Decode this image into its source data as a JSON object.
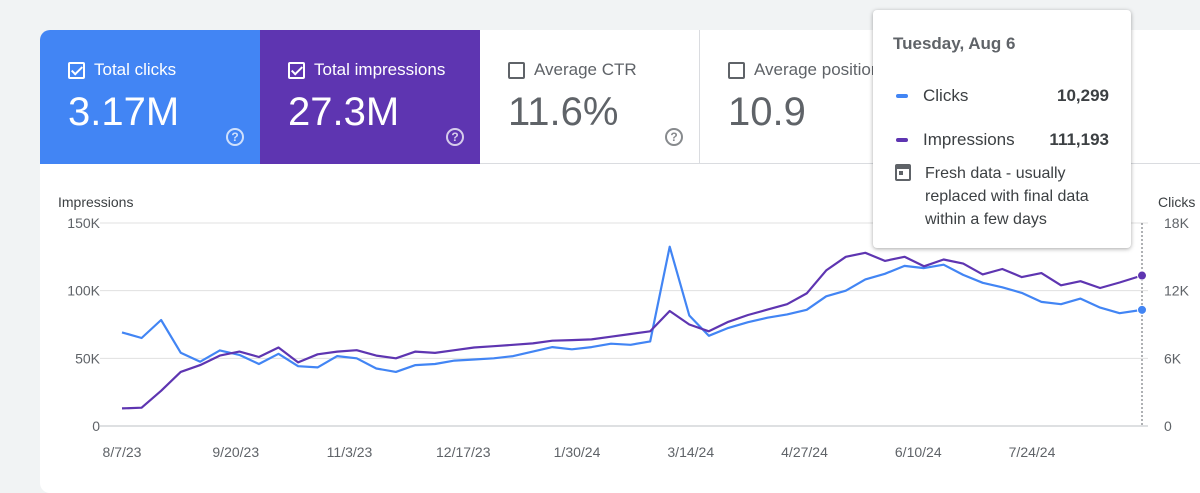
{
  "metrics": [
    {
      "label": "Total clicks",
      "value": "3.17M",
      "checked": true
    },
    {
      "label": "Total impressions",
      "value": "27.3M",
      "checked": true
    },
    {
      "label": "Average CTR",
      "value": "11.6%",
      "checked": false
    },
    {
      "label": "Average position",
      "value": "10.9",
      "checked": false
    }
  ],
  "help_glyph": "?",
  "tooltip": {
    "date": "Tuesday, Aug 6",
    "clicks_label": "Clicks",
    "clicks_value": "10,299",
    "impressions_label": "Impressions",
    "impressions_value": "111,193",
    "note": "Fresh data - usually replaced with final data within a few days",
    "note_icon": "calendar-icon"
  },
  "colors": {
    "clicks": "#4285f4",
    "impressions": "#5e35b1",
    "grid": "#e0e0e0",
    "axis_text": "#5f6368"
  },
  "chart_data": {
    "type": "line",
    "ylabel_left": "Impressions",
    "ylabel_right": "Clicks",
    "y_left_ticks": [
      "0",
      "50K",
      "100K",
      "150K"
    ],
    "y_left_range": [
      0,
      150000
    ],
    "y_right_ticks": [
      "0",
      "6K",
      "12K",
      "18K"
    ],
    "y_right_range": [
      0,
      18000
    ],
    "x_ticks": [
      "8/7/23",
      "9/20/23",
      "11/3/23",
      "12/17/23",
      "1/30/24",
      "3/14/24",
      "4/27/24",
      "6/10/24",
      "7/24/24"
    ],
    "x_range": [
      "2023-08-07",
      "2024-08-06"
    ],
    "grid": true,
    "series": [
      {
        "name": "Clicks",
        "axis": "right",
        "points": [
          [
            "2023-08-07",
            8300
          ],
          [
            "2023-08-14",
            7800
          ],
          [
            "2023-08-21",
            9400
          ],
          [
            "2023-08-28",
            6500
          ],
          [
            "2023-09-04",
            5700
          ],
          [
            "2023-09-11",
            6700
          ],
          [
            "2023-09-18",
            6300
          ],
          [
            "2023-09-25",
            5500
          ],
          [
            "2023-10-02",
            6400
          ],
          [
            "2023-10-09",
            5300
          ],
          [
            "2023-10-16",
            5200
          ],
          [
            "2023-10-23",
            6200
          ],
          [
            "2023-10-30",
            6000
          ],
          [
            "2023-11-06",
            5100
          ],
          [
            "2023-11-13",
            4800
          ],
          [
            "2023-11-20",
            5400
          ],
          [
            "2023-11-27",
            5500
          ],
          [
            "2023-12-04",
            5800
          ],
          [
            "2023-12-11",
            5900
          ],
          [
            "2023-12-18",
            6000
          ],
          [
            "2023-12-25",
            6200
          ],
          [
            "2024-01-01",
            6600
          ],
          [
            "2024-01-08",
            7000
          ],
          [
            "2024-01-15",
            6800
          ],
          [
            "2024-01-22",
            7000
          ],
          [
            "2024-01-29",
            7300
          ],
          [
            "2024-02-05",
            7200
          ],
          [
            "2024-02-12",
            7500
          ],
          [
            "2024-02-19",
            15900
          ],
          [
            "2024-02-26",
            9800
          ],
          [
            "2024-03-04",
            8000
          ],
          [
            "2024-03-11",
            8700
          ],
          [
            "2024-03-18",
            9200
          ],
          [
            "2024-03-25",
            9600
          ],
          [
            "2024-04-01",
            9900
          ],
          [
            "2024-04-08",
            10300
          ],
          [
            "2024-04-15",
            11500
          ],
          [
            "2024-04-22",
            12000
          ],
          [
            "2024-04-29",
            13000
          ],
          [
            "2024-05-06",
            13500
          ],
          [
            "2024-05-13",
            14200
          ],
          [
            "2024-05-20",
            14000
          ],
          [
            "2024-05-27",
            14300
          ],
          [
            "2024-06-03",
            13400
          ],
          [
            "2024-06-10",
            12700
          ],
          [
            "2024-06-17",
            12300
          ],
          [
            "2024-06-24",
            11800
          ],
          [
            "2024-07-01",
            11000
          ],
          [
            "2024-07-08",
            10800
          ],
          [
            "2024-07-15",
            11300
          ],
          [
            "2024-07-22",
            10500
          ],
          [
            "2024-07-29",
            10000
          ],
          [
            "2024-08-06",
            10299
          ]
        ]
      },
      {
        "name": "Impressions",
        "axis": "left",
        "points": [
          [
            "2023-08-07",
            13000
          ],
          [
            "2023-08-14",
            13500
          ],
          [
            "2023-08-21",
            26000
          ],
          [
            "2023-08-28",
            40000
          ],
          [
            "2023-09-04",
            45000
          ],
          [
            "2023-09-11",
            52000
          ],
          [
            "2023-09-18",
            55000
          ],
          [
            "2023-09-25",
            51000
          ],
          [
            "2023-10-02",
            58000
          ],
          [
            "2023-10-09",
            47000
          ],
          [
            "2023-10-16",
            53000
          ],
          [
            "2023-10-23",
            55000
          ],
          [
            "2023-10-30",
            56000
          ],
          [
            "2023-11-06",
            52000
          ],
          [
            "2023-11-13",
            50000
          ],
          [
            "2023-11-20",
            55000
          ],
          [
            "2023-11-27",
            54000
          ],
          [
            "2023-12-04",
            56000
          ],
          [
            "2023-12-11",
            58000
          ],
          [
            "2023-12-18",
            59000
          ],
          [
            "2023-12-25",
            60000
          ],
          [
            "2024-01-01",
            61000
          ],
          [
            "2024-01-08",
            63000
          ],
          [
            "2024-01-15",
            63500
          ],
          [
            "2024-01-22",
            64000
          ],
          [
            "2024-01-29",
            66000
          ],
          [
            "2024-02-05",
            68000
          ],
          [
            "2024-02-12",
            70000
          ],
          [
            "2024-02-19",
            85000
          ],
          [
            "2024-02-26",
            75000
          ],
          [
            "2024-03-04",
            70000
          ],
          [
            "2024-03-11",
            77000
          ],
          [
            "2024-03-18",
            82000
          ],
          [
            "2024-03-25",
            86000
          ],
          [
            "2024-04-01",
            90000
          ],
          [
            "2024-04-08",
            98000
          ],
          [
            "2024-04-15",
            115000
          ],
          [
            "2024-04-22",
            125000
          ],
          [
            "2024-04-29",
            128000
          ],
          [
            "2024-05-06",
            122000
          ],
          [
            "2024-05-13",
            125000
          ],
          [
            "2024-05-20",
            118000
          ],
          [
            "2024-05-27",
            123000
          ],
          [
            "2024-06-03",
            120000
          ],
          [
            "2024-06-10",
            112000
          ],
          [
            "2024-06-17",
            116000
          ],
          [
            "2024-06-24",
            110000
          ],
          [
            "2024-07-01",
            113000
          ],
          [
            "2024-07-08",
            104000
          ],
          [
            "2024-07-15",
            107000
          ],
          [
            "2024-07-22",
            102000
          ],
          [
            "2024-07-29",
            106000
          ],
          [
            "2024-08-06",
            111193
          ]
        ]
      }
    ],
    "hover_date": "2024-08-06"
  }
}
